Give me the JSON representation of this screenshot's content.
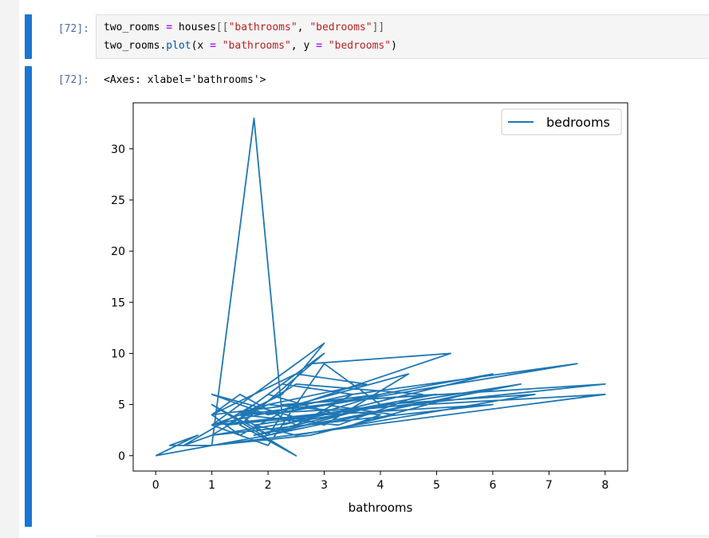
{
  "cell_in": {
    "prompt": "[72]:",
    "code_line1": {
      "var": "two_rooms ",
      "eq": "=",
      "obj": " houses",
      "open": "[[",
      "s1": "\"bathrooms\"",
      "comma": ", ",
      "s2": "\"bedrooms\"",
      "close": "]]"
    },
    "code_line2": {
      "obj": "two_rooms.",
      "fn": "plot",
      "open": "(x ",
      "eq1": "=",
      "sp1": " ",
      "s1": "\"bathrooms\"",
      "mid": ", y ",
      "eq2": "=",
      "sp2": " ",
      "s2": "\"bedrooms\"",
      "close": ")"
    }
  },
  "cell_out": {
    "prompt": "[72]:",
    "repr": "<Axes: xlabel='bathrooms'>"
  },
  "colors": {
    "accent_bar": "#1976d2",
    "prompt": "#4b6fa8",
    "series": "#1f77b4"
  },
  "chart_data": {
    "type": "line",
    "xlabel": "bathrooms",
    "ylabel": "",
    "xlim": [
      -0.4,
      8.4
    ],
    "ylim": [
      -1.5,
      34.5
    ],
    "xticks": [
      0,
      1,
      2,
      3,
      4,
      5,
      6,
      7,
      8
    ],
    "yticks": [
      0,
      5,
      10,
      15,
      20,
      25,
      30
    ],
    "legend": {
      "position": "top-right",
      "entries": [
        "bedrooms"
      ]
    },
    "series": [
      {
        "name": "bedrooms",
        "color": "#1f77b4",
        "x": [
          0,
          1,
          1.75,
          2.25,
          2,
          1,
          2.5,
          1.5,
          3,
          2,
          3.25,
          1,
          0.5,
          1.75,
          2.25,
          3.5,
          1,
          2,
          3,
          4,
          2.5,
          1.5,
          1,
          2.5,
          3.75,
          2,
          1,
          3,
          2.25,
          1.5,
          2.75,
          5.25,
          2,
          1,
          3,
          4.5,
          2.5,
          1.5,
          1,
          4,
          2.25,
          6,
          3,
          2,
          7.5,
          3.5,
          2.5,
          1.75,
          6.5,
          3,
          1,
          8,
          2.25,
          5,
          3,
          1.75,
          2.5,
          6.75,
          4,
          2,
          1,
          8,
          1.5,
          3.25,
          4.75,
          2.5,
          1,
          6,
          3,
          1.25,
          2,
          4,
          3.5,
          5.5,
          2,
          1.5,
          3,
          4.25,
          2.75,
          1,
          0.25,
          0.75,
          0
        ],
        "y": [
          0,
          1,
          33,
          4,
          2,
          5,
          0,
          3,
          10,
          6,
          4,
          2,
          1,
          5,
          7,
          6,
          3,
          1,
          9,
          5,
          3,
          6,
          4,
          8,
          7,
          5,
          3,
          11,
          6,
          4,
          9,
          10,
          4,
          6,
          3,
          8,
          5,
          2,
          4,
          6,
          3,
          8,
          5,
          4,
          9,
          6,
          3,
          2,
          7,
          4,
          3,
          7,
          5,
          6,
          4,
          3,
          2,
          6,
          5,
          2,
          1,
          6,
          4,
          3,
          6,
          7,
          2,
          5,
          4,
          3,
          5,
          4,
          3,
          6,
          2,
          4,
          5,
          4,
          2,
          1,
          1,
          2,
          0
        ]
      }
    ]
  }
}
